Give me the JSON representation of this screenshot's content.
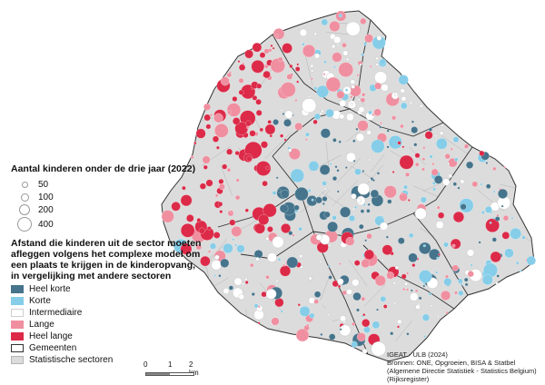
{
  "legend": {
    "size_title": "Aantal kinderen onder de drie jaar (2022)",
    "sizes": [
      {
        "label": "50",
        "value": 50
      },
      {
        "label": "100",
        "value": 100
      },
      {
        "label": "200",
        "value": 200
      },
      {
        "label": "400",
        "value": 400
      }
    ],
    "category_title": "Afstand die kinderen uit de sector moeten afleggen volgens het complexe model om een plaats te krijgen in de kinderopvang, in vergelijking met andere sectoren",
    "categories": [
      {
        "label": "Heel korte",
        "color": "#45748c"
      },
      {
        "label": "Korte",
        "color": "#85cde8"
      },
      {
        "label": "Intermediaire",
        "color": "#ffffff"
      },
      {
        "label": "Lange",
        "color": "#ef8fa0"
      },
      {
        "label": "Heel lange",
        "color": "#dc2a48"
      }
    ],
    "boundaries": [
      {
        "label": "Gemeenten"
      },
      {
        "label": "Statistische sectoren"
      }
    ]
  },
  "scalebar": {
    "ticks": [
      "0",
      "1",
      "2 km"
    ]
  },
  "credits": {
    "line1": "IGEAT - ULB (2024)",
    "line2": "Bronnen: ONE, Opgroeien, BISA & Statbel (Algemene Directie Statistiek - Statistics Belgium) (Rijksregister)"
  },
  "colors": {
    "region_fill": "#dcdcdc",
    "sector_line": "#b4b4b4",
    "municipality_line": "#333333"
  }
}
